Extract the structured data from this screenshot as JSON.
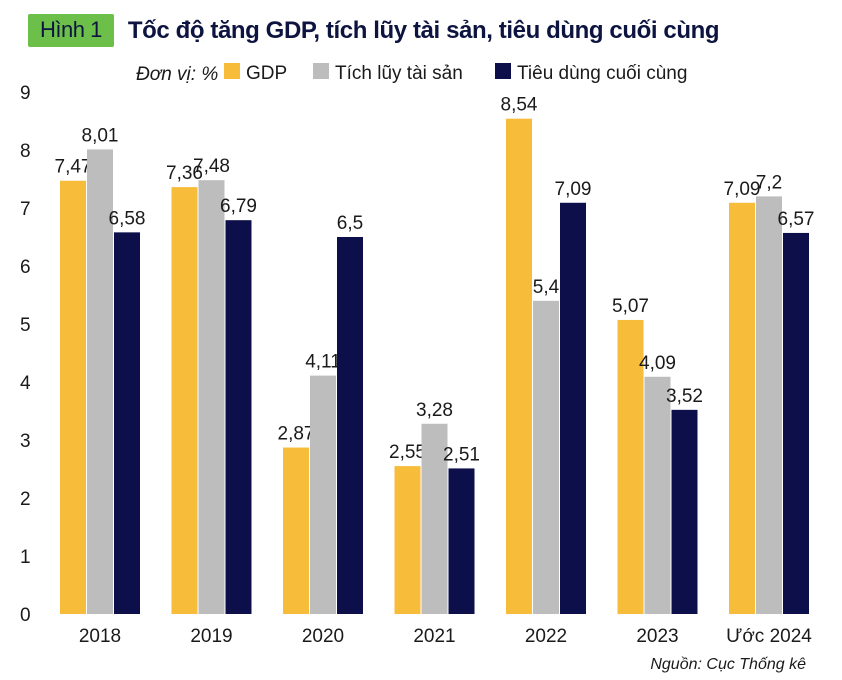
{
  "figure": {
    "badge": "Hình 1",
    "title": "Tốc độ tăng GDP, tích lũy tài sản, tiêu dùng cuối cùng",
    "unit": "Đơn vị: %",
    "source": "Nguồn: Cục Thống kê"
  },
  "colors": {
    "gdp": "#f7bd3a",
    "tich_luy": "#bdbdbd",
    "tieu_dung": "#0d0f4a",
    "axis_text": "#1a1a1a",
    "badge_bg": "#6cc04a",
    "title": "#0d1440"
  },
  "chart_data": {
    "type": "bar",
    "title": "Tốc độ tăng GDP, tích lũy tài sản, tiêu dùng cuối cùng",
    "xlabel": "",
    "ylabel": "Đơn vị: %",
    "ylim": [
      0,
      9
    ],
    "yticks": [
      0,
      1,
      2,
      3,
      4,
      5,
      6,
      7,
      8,
      9
    ],
    "grid": false,
    "legend": "top",
    "categories": [
      "2018",
      "2019",
      "2020",
      "2021",
      "2022",
      "2023",
      "Ước 2024"
    ],
    "series": [
      {
        "name": "GDP",
        "color_key": "gdp",
        "values": [
          7.47,
          7.36,
          2.87,
          2.55,
          8.54,
          5.07,
          7.09
        ],
        "labels": [
          "7,47",
          "7,36",
          "2,87",
          "2,55",
          "8,54",
          "5,07",
          "7,09"
        ]
      },
      {
        "name": "Tích lũy tài sản",
        "color_key": "tich_luy",
        "values": [
          8.01,
          7.48,
          4.11,
          3.28,
          5.4,
          4.09,
          7.2
        ],
        "labels": [
          "8,01",
          "7,48",
          "4,11",
          "3,28",
          "5,4",
          "4,09",
          "7,2"
        ]
      },
      {
        "name": "Tiêu dùng cuối cùng",
        "color_key": "tieu_dung",
        "values": [
          6.58,
          6.79,
          6.5,
          2.51,
          7.09,
          3.52,
          6.57
        ],
        "labels": [
          "6,58",
          "6,79",
          "6,5",
          "2,51",
          "7,09",
          "3,52",
          "6,57"
        ]
      }
    ]
  }
}
